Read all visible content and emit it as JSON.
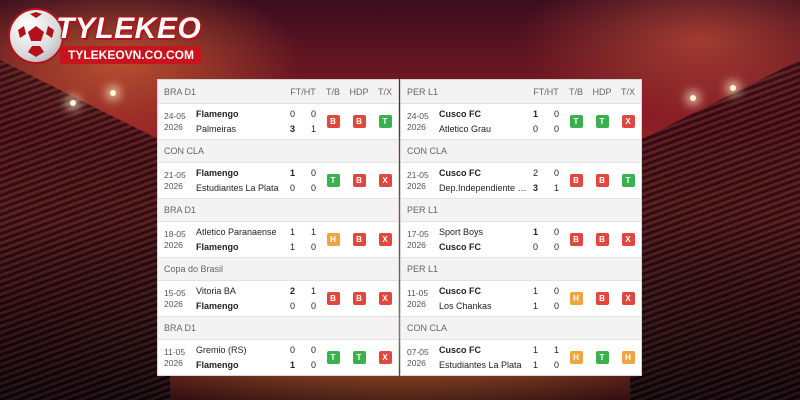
{
  "logo": {
    "brand": "TYLEKEO",
    "url": "TYLEKEOVN.CO.COM"
  },
  "colors": {
    "win": "#3bb04f",
    "loss": "#e0483f",
    "draw": "#f0a441",
    "brand_red": "#c8141e"
  },
  "columns": {
    "ftht": "FT/HT",
    "tb": "T/B",
    "hdp": "HDP",
    "tx": "T/X"
  },
  "left": {
    "league": "BRA D1",
    "matches": [
      {
        "group": "",
        "date": "24-05",
        "year": "2026",
        "home": "Flamengo",
        "away": "Palmeiras",
        "ft_home": "0",
        "ht_home": "0",
        "ft_away": "3",
        "ht_away": "1",
        "tb": "B",
        "hdp": "B",
        "tx": "T"
      },
      {
        "group": "CON CLA",
        "date": "21-05",
        "year": "2026",
        "home": "Flamengo",
        "away": "Estudiantes La Plata",
        "ft_home": "1",
        "ht_home": "0",
        "ft_away": "0",
        "ht_away": "0",
        "tb": "T",
        "hdp": "B",
        "tx": "X"
      },
      {
        "group": "BRA D1",
        "date": "18-05",
        "year": "2026",
        "home": "Atletico Paranaense",
        "away": "Flamengo",
        "ft_home": "1",
        "ht_home": "1",
        "ft_away": "1",
        "ht_away": "0",
        "tb": "H",
        "hdp": "B",
        "tx": "X"
      },
      {
        "group": "Copa do Brasil",
        "date": "15-05",
        "year": "2026",
        "home": "Vitoria BA",
        "away": "Flamengo",
        "ft_home": "2",
        "ht_home": "1",
        "ft_away": "0",
        "ht_away": "0",
        "tb": "B",
        "hdp": "B",
        "tx": "X"
      },
      {
        "group": "BRA D1",
        "date": "11-05",
        "year": "2026",
        "home": "Gremio (RS)",
        "away": "Flamengo",
        "ft_home": "0",
        "ht_home": "0",
        "ft_away": "1",
        "ht_away": "0",
        "tb": "T",
        "hdp": "T",
        "tx": "X"
      }
    ]
  },
  "right": {
    "league": "PER L1",
    "matches": [
      {
        "group": "",
        "date": "24-05",
        "year": "2026",
        "home": "Cusco FC",
        "away": "Atletico Grau",
        "ft_home": "1",
        "ht_home": "0",
        "ft_away": "0",
        "ht_away": "0",
        "tb": "T",
        "hdp": "T",
        "tx": "X"
      },
      {
        "group": "CON CLA",
        "date": "21-05",
        "year": "2026",
        "home": "Cusco FC",
        "away": "Dep.Independiente Medellin",
        "ft_home": "2",
        "ht_home": "0",
        "ft_away": "3",
        "ht_away": "1",
        "tb": "B",
        "hdp": "B",
        "tx": "T"
      },
      {
        "group": "PER L1",
        "date": "17-05",
        "year": "2026",
        "home": "Sport Boys",
        "away": "Cusco FC",
        "ft_home": "1",
        "ht_home": "0",
        "ft_away": "0",
        "ht_away": "0",
        "tb": "B",
        "hdp": "B",
        "tx": "X"
      },
      {
        "group": "PER L1",
        "date": "11-05",
        "year": "2026",
        "home": "Cusco FC",
        "away": "Los Chankas",
        "ft_home": "1",
        "ht_home": "0",
        "ft_away": "1",
        "ht_away": "0",
        "tb": "H",
        "hdp": "B",
        "tx": "X"
      },
      {
        "group": "CON CLA",
        "date": "07-05",
        "year": "2026",
        "home": "Cusco FC",
        "away": "Estudiantes La Plata",
        "ft_home": "1",
        "ht_home": "1",
        "ft_away": "1",
        "ht_away": "0",
        "tb": "H",
        "hdp": "T",
        "tx": "H"
      }
    ]
  }
}
